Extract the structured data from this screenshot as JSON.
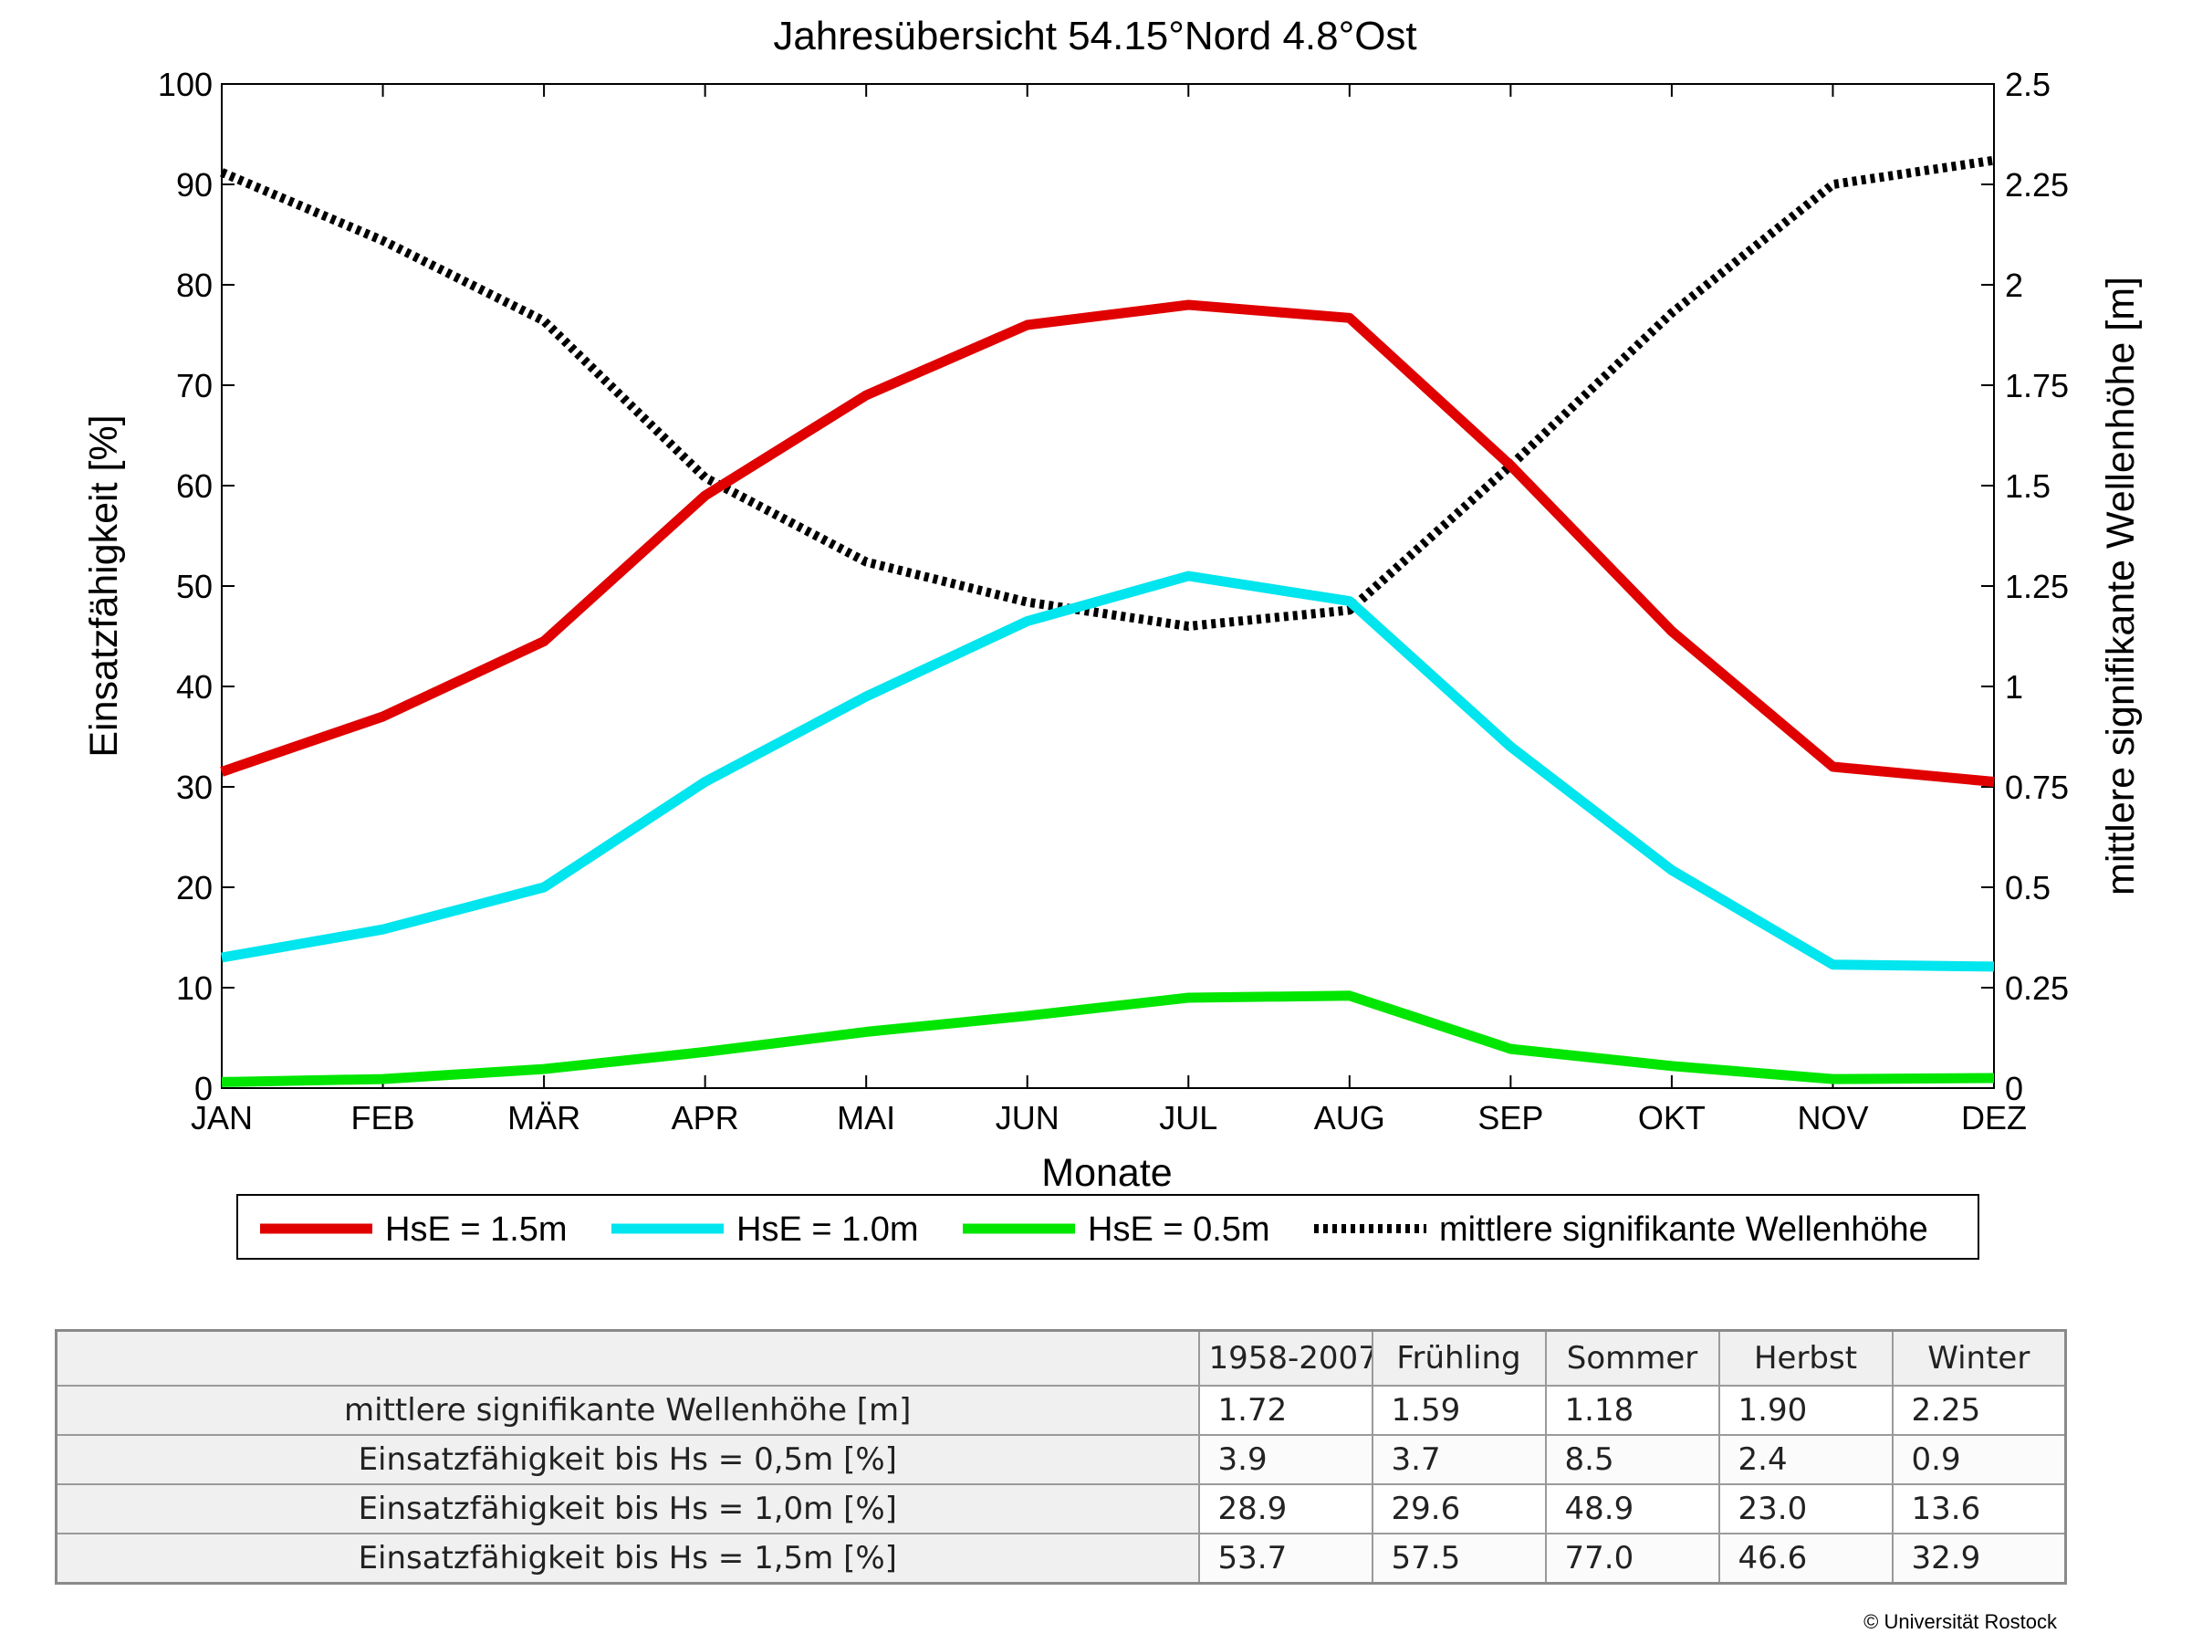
{
  "chart_data": {
    "type": "line",
    "title": "Jahresübersicht  54.15°Nord  4.8°Ost",
    "xlabel": "Monate",
    "ylabel": "Einsatzfähigkeit [%]",
    "y2label": "mittlere signifikante Wellenhöhe [m]",
    "categories": [
      "JAN",
      "FEB",
      "MÄR",
      "APR",
      "MAI",
      "JUN",
      "JUL",
      "AUG",
      "SEP",
      "OKT",
      "NOV",
      "DEZ"
    ],
    "ylim": [
      0,
      100
    ],
    "y2lim": [
      0,
      2.5
    ],
    "yticks": [
      "0",
      "10",
      "20",
      "30",
      "40",
      "50",
      "60",
      "70",
      "80",
      "90",
      "100"
    ],
    "y2ticks": [
      "0",
      "0.25",
      "0.5",
      "0.75",
      "1",
      "1.25",
      "1.5",
      "1.75",
      "2",
      "2.25",
      "2.5"
    ],
    "grid": false,
    "legend_position": "bottom",
    "series": [
      {
        "name": "HsE = 1.5m",
        "axis": "left",
        "color": "#e00000",
        "style": "solid",
        "values": [
          31.5,
          37,
          44.5,
          59,
          69,
          76,
          78,
          76.7,
          62,
          45.5,
          32,
          30.5
        ]
      },
      {
        "name": "HsE = 1.0m",
        "axis": "left",
        "color": "#00e5ee",
        "style": "solid",
        "values": [
          13,
          15.8,
          20,
          30.5,
          39,
          46.5,
          51,
          48.5,
          34,
          21.7,
          12.3,
          12.1
        ]
      },
      {
        "name": "HsE = 0.5m",
        "axis": "left",
        "color": "#00e600",
        "style": "solid",
        "values": [
          0.6,
          0.9,
          1.9,
          3.6,
          5.6,
          7.2,
          9,
          9.2,
          3.9,
          2.2,
          0.9,
          1
        ]
      },
      {
        "name": "mittlere signifikante Wellenhöhe",
        "axis": "right",
        "color": "#000000",
        "style": "dotted",
        "values": [
          2.28,
          2.11,
          1.91,
          1.52,
          1.31,
          1.21,
          1.15,
          1.19,
          1.55,
          1.93,
          2.25,
          2.31
        ]
      }
    ]
  },
  "table": {
    "headers": [
      "",
      "1958-2007",
      "Frühling",
      "Sommer",
      "Herbst",
      "Winter"
    ],
    "rows": [
      {
        "label": "mittlere signifikante Wellenhöhe [m]",
        "cells": [
          "1.72",
          "1.59",
          "1.18",
          "1.90",
          "2.25"
        ]
      },
      {
        "label": "Einsatzfähigkeit bis Hs = 0,5m [%]",
        "cells": [
          "3.9",
          "3.7",
          "8.5",
          "2.4",
          "0.9"
        ]
      },
      {
        "label": "Einsatzfähigkeit bis Hs = 1,0m [%]",
        "cells": [
          "28.9",
          "29.6",
          "48.9",
          "23.0",
          "13.6"
        ]
      },
      {
        "label": "Einsatzfähigkeit bis Hs = 1,5m [%]",
        "cells": [
          "53.7",
          "57.5",
          "77.0",
          "46.6",
          "32.9"
        ]
      }
    ]
  },
  "copyright": "© Universität Rostock"
}
